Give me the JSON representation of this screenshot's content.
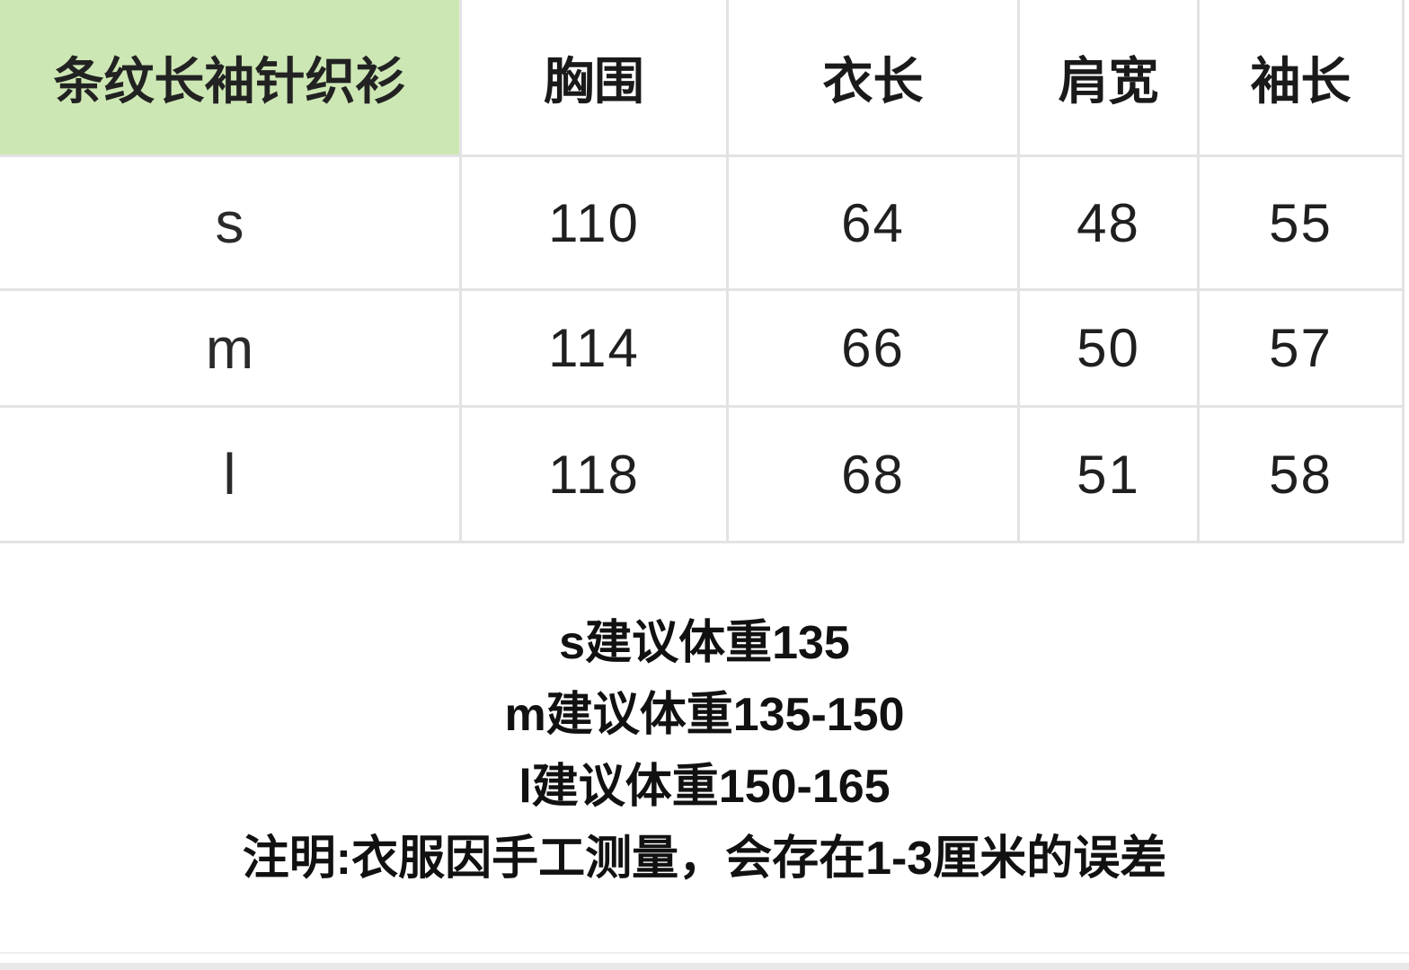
{
  "table": {
    "title": "条纹长袖针织衫",
    "columns": [
      "胸围",
      "衣长",
      "肩宽",
      "袖长"
    ],
    "rows": [
      {
        "size": "s",
        "values": [
          "110",
          "64",
          "48",
          "55"
        ]
      },
      {
        "size": "m",
        "values": [
          "114",
          "66",
          "50",
          "57"
        ]
      },
      {
        "size": "l",
        "values": [
          "118",
          "68",
          "51",
          "58"
        ]
      }
    ]
  },
  "notes": {
    "lines": [
      "s建议体重135",
      "m建议体重135-150",
      "l建议体重150-165",
      "注明:衣服因手工测量，会存在1-3厘米的误差"
    ]
  },
  "colors": {
    "title_cell_bg": "#cde7b4",
    "grid_line": "#e3e3e3",
    "text": "#1d1d1d"
  }
}
